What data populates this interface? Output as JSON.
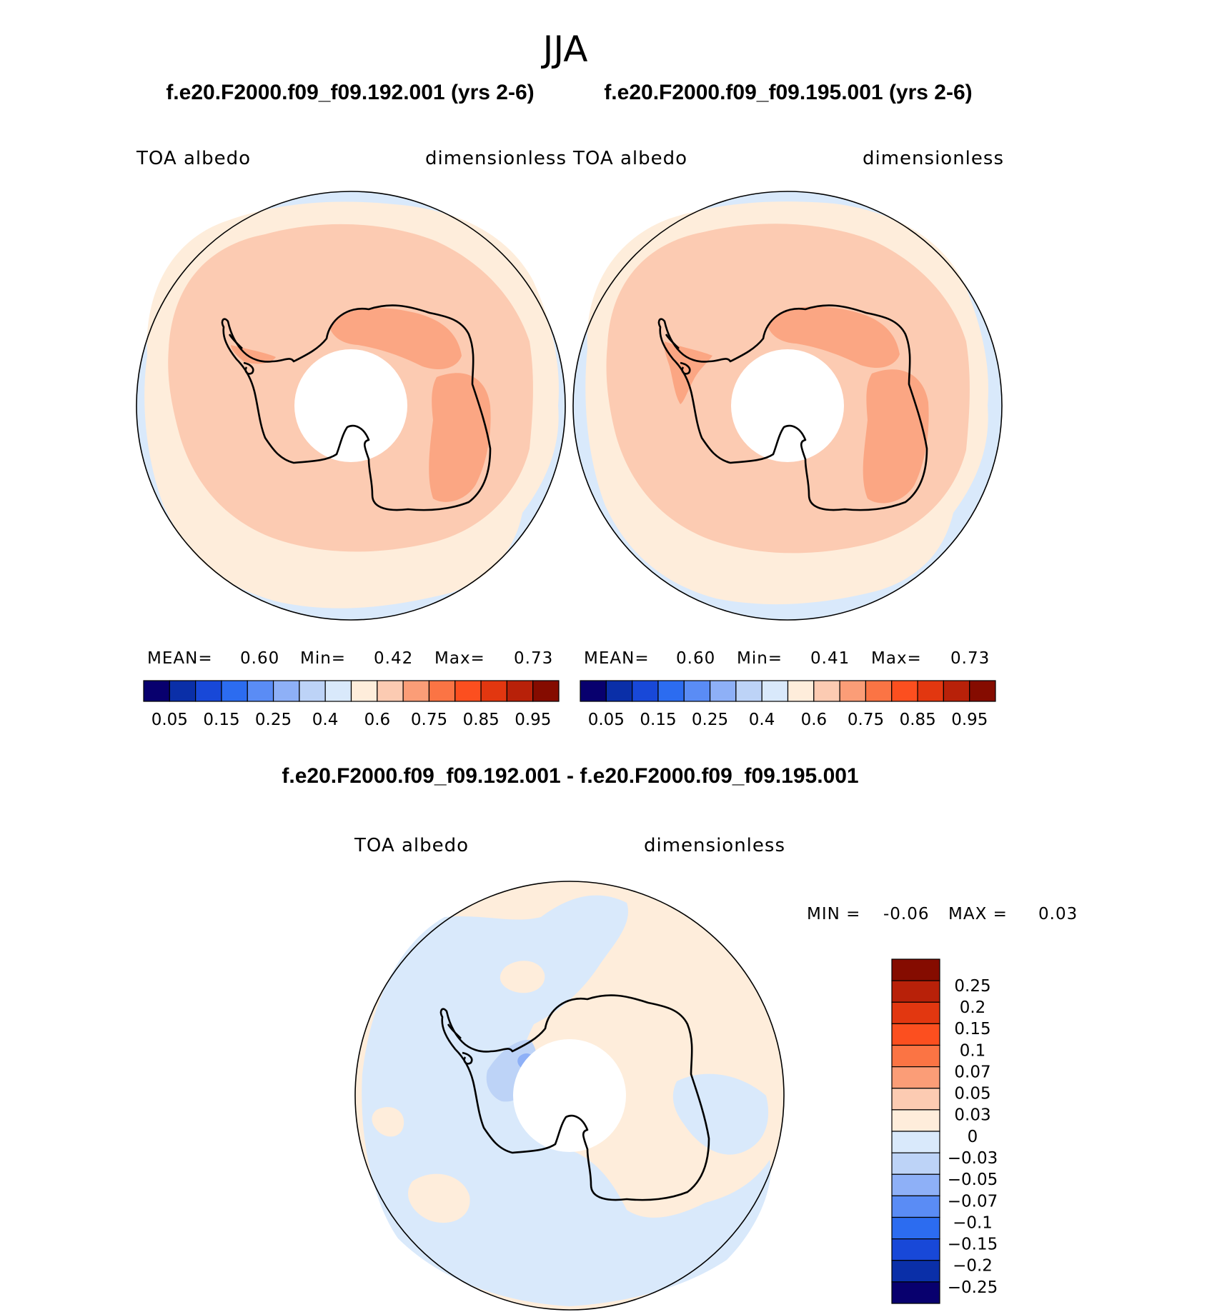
{
  "figure": {
    "season": "JJA",
    "case1_title": "f.e20.F2000.f09_f09.192.001 (yrs 2-6)",
    "case2_title": "f.e20.F2000.f09_f09.195.001 (yrs 2-6)",
    "diff_title": "f.e20.F2000.f09_f09.192.001 - f.e20.F2000.f09_f09.195.001"
  },
  "colors": {
    "abs_scale": [
      "#08006e",
      "#0a2fa8",
      "#1848d8",
      "#2c6cf0",
      "#5a8cf5",
      "#8eb0f7",
      "#bdd3f7",
      "#d9e9fb",
      "#feeddb",
      "#fccbb2",
      "#fb9d77",
      "#fb7444",
      "#fc4f1f",
      "#e23710",
      "#b82109",
      "#850c00"
    ],
    "diff_scale": [
      "#08006e",
      "#0a2fa8",
      "#1848d8",
      "#2c6cf0",
      "#5a8cf5",
      "#8eb0f7",
      "#bdd3f7",
      "#d9e9fb",
      "#feeddb",
      "#fccbb2",
      "#fb9d77",
      "#fb7444",
      "#fc4f1f",
      "#e23710",
      "#b82109",
      "#850c00"
    ]
  },
  "chart_data": [
    {
      "type": "heatmap",
      "projection": "south-polar-stereographic",
      "variable": "TOA albedo",
      "units": "dimensionless",
      "stats": {
        "mean_label": "MEAN=",
        "mean": "0.60",
        "min_label": "Min=",
        "min": "0.42",
        "max_label": "Max=",
        "max": "0.73"
      },
      "colorbar": {
        "orientation": "horizontal",
        "tick_labels": [
          "0.05",
          "0.15",
          "0.25",
          "0.4",
          "0.6",
          "0.75",
          "0.85",
          "0.95"
        ]
      }
    },
    {
      "type": "heatmap",
      "projection": "south-polar-stereographic",
      "variable": "TOA albedo",
      "units": "dimensionless",
      "stats": {
        "mean_label": "MEAN=",
        "mean": "0.60",
        "min_label": "Min=",
        "min": "0.41",
        "max_label": "Max=",
        "max": "0.73"
      },
      "colorbar": {
        "orientation": "horizontal",
        "tick_labels": [
          "0.05",
          "0.15",
          "0.25",
          "0.4",
          "0.6",
          "0.75",
          "0.85",
          "0.95"
        ]
      }
    },
    {
      "type": "heatmap",
      "projection": "south-polar-stereographic",
      "variable": "TOA albedo",
      "units": "dimensionless",
      "stats": {
        "min_label": "MIN =",
        "min": "-0.06",
        "max_label": "MAX =",
        "max": "0.03"
      },
      "colorbar": {
        "orientation": "vertical",
        "tick_labels": [
          "0.25",
          "0.2",
          "0.15",
          "0.1",
          "0.07",
          "0.05",
          "0.03",
          "0",
          "−0.03",
          "−0.05",
          "−0.07",
          "−0.1",
          "−0.15",
          "−0.2",
          "−0.25"
        ]
      }
    }
  ]
}
